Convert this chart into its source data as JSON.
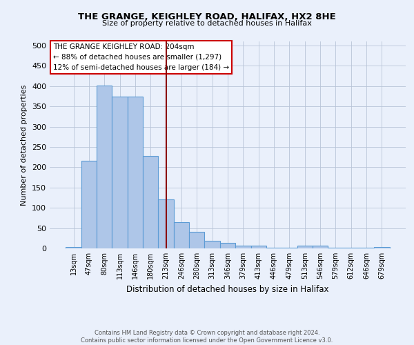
{
  "title1": "THE GRANGE, KEIGHLEY ROAD, HALIFAX, HX2 8HE",
  "title2": "Size of property relative to detached houses in Halifax",
  "xlabel": "Distribution of detached houses by size in Halifax",
  "ylabel": "Number of detached properties",
  "categories": [
    "13sqm",
    "47sqm",
    "80sqm",
    "113sqm",
    "146sqm",
    "180sqm",
    "213sqm",
    "246sqm",
    "280sqm",
    "313sqm",
    "346sqm",
    "379sqm",
    "413sqm",
    "446sqm",
    "479sqm",
    "513sqm",
    "546sqm",
    "579sqm",
    "612sqm",
    "646sqm",
    "679sqm"
  ],
  "values": [
    3,
    216,
    402,
    374,
    374,
    228,
    120,
    64,
    40,
    18,
    13,
    6,
    7,
    2,
    2,
    6,
    6,
    1,
    1,
    1,
    3
  ],
  "bar_color": "#AEC6E8",
  "bar_edge_color": "#5B9BD5",
  "vline_color": "#8B0000",
  "annotation_title": "THE GRANGE KEIGHLEY ROAD: 204sqm",
  "annotation_line1": "← 88% of detached houses are smaller (1,297)",
  "annotation_line2": "12% of semi-detached houses are larger (184) →",
  "annotation_box_color": "#ffffff",
  "annotation_box_edge": "#cc0000",
  "ylim": [
    0,
    510
  ],
  "yticks": [
    0,
    50,
    100,
    150,
    200,
    250,
    300,
    350,
    400,
    450,
    500
  ],
  "footer": "Contains HM Land Registry data © Crown copyright and database right 2024.\nContains public sector information licensed under the Open Government Licence v3.0.",
  "bg_color": "#EAF0FB"
}
